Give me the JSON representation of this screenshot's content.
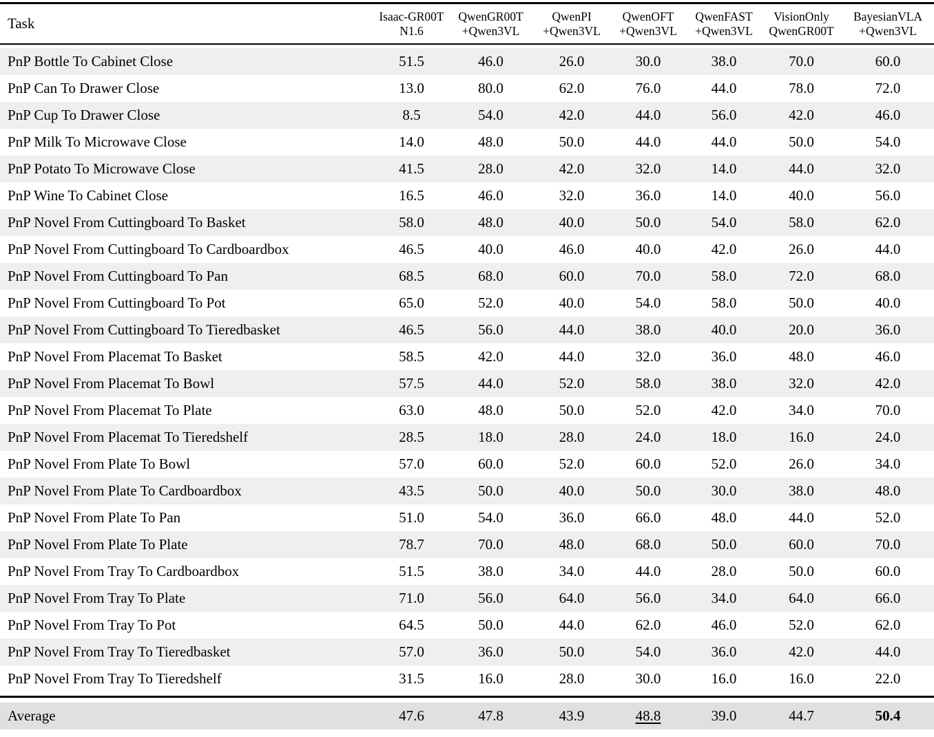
{
  "table": {
    "task_header": "Task",
    "columns": [
      {
        "line1": "Isaac-GR00T",
        "line2": "N1.6"
      },
      {
        "line1": "QwenGR00T",
        "line2": "+Qwen3VL"
      },
      {
        "line1": "QwenPI",
        "line2": "+Qwen3VL"
      },
      {
        "line1": "QwenOFT",
        "line2": "+Qwen3VL"
      },
      {
        "line1": "QwenFAST",
        "line2": "+Qwen3VL"
      },
      {
        "line1": "VisionOnly",
        "line2": "QwenGR00T"
      },
      {
        "line1": "BayesianVLA",
        "line2": "+Qwen3VL"
      }
    ],
    "rows": [
      {
        "task": "PnP Bottle To Cabinet Close",
        "values": [
          "51.5",
          "46.0",
          "26.0",
          "30.0",
          "38.0",
          "70.0",
          "60.0"
        ]
      },
      {
        "task": "PnP Can To Drawer Close",
        "values": [
          "13.0",
          "80.0",
          "62.0",
          "76.0",
          "44.0",
          "78.0",
          "72.0"
        ]
      },
      {
        "task": "PnP Cup To Drawer Close",
        "values": [
          "8.5",
          "54.0",
          "42.0",
          "44.0",
          "56.0",
          "42.0",
          "46.0"
        ]
      },
      {
        "task": "PnP Milk To Microwave Close",
        "values": [
          "14.0",
          "48.0",
          "50.0",
          "44.0",
          "44.0",
          "50.0",
          "54.0"
        ]
      },
      {
        "task": "PnP Potato To Microwave Close",
        "values": [
          "41.5",
          "28.0",
          "42.0",
          "32.0",
          "14.0",
          "44.0",
          "32.0"
        ]
      },
      {
        "task": "PnP Wine To Cabinet Close",
        "values": [
          "16.5",
          "46.0",
          "32.0",
          "36.0",
          "14.0",
          "40.0",
          "56.0"
        ]
      },
      {
        "task": "PnP Novel From Cuttingboard To Basket",
        "values": [
          "58.0",
          "48.0",
          "40.0",
          "50.0",
          "54.0",
          "58.0",
          "62.0"
        ]
      },
      {
        "task": "PnP Novel From Cuttingboard To Cardboardbox",
        "values": [
          "46.5",
          "40.0",
          "46.0",
          "40.0",
          "42.0",
          "26.0",
          "44.0"
        ]
      },
      {
        "task": "PnP Novel From Cuttingboard To Pan",
        "values": [
          "68.5",
          "68.0",
          "60.0",
          "70.0",
          "58.0",
          "72.0",
          "68.0"
        ]
      },
      {
        "task": "PnP Novel From Cuttingboard To Pot",
        "values": [
          "65.0",
          "52.0",
          "40.0",
          "54.0",
          "58.0",
          "50.0",
          "40.0"
        ]
      },
      {
        "task": "PnP Novel From Cuttingboard To Tieredbasket",
        "values": [
          "46.5",
          "56.0",
          "44.0",
          "38.0",
          "40.0",
          "20.0",
          "36.0"
        ]
      },
      {
        "task": "PnP Novel From Placemat To Basket",
        "values": [
          "58.5",
          "42.0",
          "44.0",
          "32.0",
          "36.0",
          "48.0",
          "46.0"
        ]
      },
      {
        "task": "PnP Novel From Placemat To Bowl",
        "values": [
          "57.5",
          "44.0",
          "52.0",
          "58.0",
          "38.0",
          "32.0",
          "42.0"
        ]
      },
      {
        "task": "PnP Novel From Placemat To Plate",
        "values": [
          "63.0",
          "48.0",
          "50.0",
          "52.0",
          "42.0",
          "34.0",
          "70.0"
        ]
      },
      {
        "task": "PnP Novel From Placemat To Tieredshelf",
        "values": [
          "28.5",
          "18.0",
          "28.0",
          "24.0",
          "18.0",
          "16.0",
          "24.0"
        ]
      },
      {
        "task": "PnP Novel From Plate To Bowl",
        "values": [
          "57.0",
          "60.0",
          "52.0",
          "60.0",
          "52.0",
          "26.0",
          "34.0"
        ]
      },
      {
        "task": "PnP Novel From Plate To Cardboardbox",
        "values": [
          "43.5",
          "50.0",
          "40.0",
          "50.0",
          "30.0",
          "38.0",
          "48.0"
        ]
      },
      {
        "task": "PnP Novel From Plate To Pan",
        "values": [
          "51.0",
          "54.0",
          "36.0",
          "66.0",
          "48.0",
          "44.0",
          "52.0"
        ]
      },
      {
        "task": "PnP Novel From Plate To Plate",
        "values": [
          "78.7",
          "70.0",
          "48.0",
          "68.0",
          "50.0",
          "60.0",
          "70.0"
        ]
      },
      {
        "task": "PnP Novel From Tray To Cardboardbox",
        "values": [
          "51.5",
          "38.0",
          "34.0",
          "44.0",
          "28.0",
          "50.0",
          "60.0"
        ]
      },
      {
        "task": "PnP Novel From Tray To Plate",
        "values": [
          "71.0",
          "56.0",
          "64.0",
          "56.0",
          "34.0",
          "64.0",
          "66.0"
        ]
      },
      {
        "task": "PnP Novel From Tray To Pot",
        "values": [
          "64.5",
          "50.0",
          "44.0",
          "62.0",
          "46.0",
          "52.0",
          "62.0"
        ]
      },
      {
        "task": "PnP Novel From Tray To Tieredbasket",
        "values": [
          "57.0",
          "36.0",
          "50.0",
          "54.0",
          "36.0",
          "42.0",
          "44.0"
        ]
      },
      {
        "task": "PnP Novel From Tray To Tieredshelf",
        "values": [
          "31.5",
          "16.0",
          "28.0",
          "30.0",
          "16.0",
          "16.0",
          "22.0"
        ]
      }
    ],
    "average": {
      "label": "Average",
      "values": [
        "47.6",
        "47.8",
        "43.9",
        "48.8",
        "39.0",
        "44.7",
        "50.4"
      ],
      "underline_column": 3,
      "bold_column": 6
    },
    "colors": {
      "stripe_bg": "#efefef",
      "average_bg": "#e0e0e0",
      "rule": "#000000",
      "text": "#000000"
    }
  }
}
